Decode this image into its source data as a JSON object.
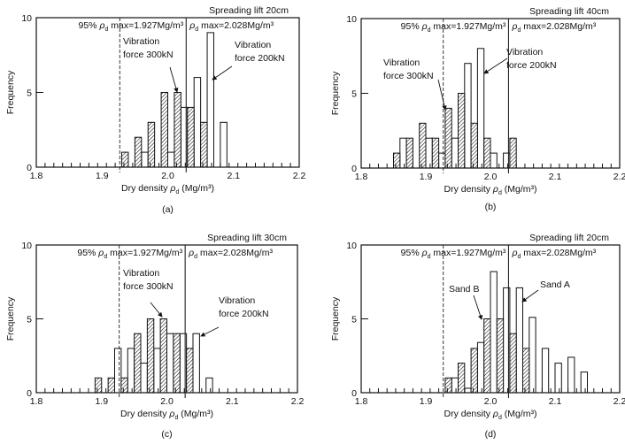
{
  "chart_data": [
    {
      "type": "bar",
      "panel_label": "(a)",
      "title": "Spreading lift 20cm",
      "ylabel": "Frequency",
      "xlabel": {
        "prefix": "Dry density ",
        "symbol": "ρ",
        "subscript": "d",
        "suffix": " (Mg/m³)"
      },
      "xlim": [
        1.8,
        2.2
      ],
      "ylim": [
        0,
        10
      ],
      "xticks": [
        "1.8",
        "1.9",
        "2.0",
        "2.1",
        "2.2"
      ],
      "yticks": [
        "0",
        "5",
        "10"
      ],
      "bin_width": 0.01,
      "ref_lines": [
        {
          "value": 1.927,
          "style": "dashed",
          "label": {
            "prefix": "95% ",
            "symbol": "ρ",
            "subscript": "d",
            "suffix": " max=1.927Mg/m³"
          }
        },
        {
          "value": 2.028,
          "style": "solid",
          "label": {
            "prefix": "",
            "symbol": "ρ",
            "subscript": "d",
            "suffix": " max=2.028Mg/m³"
          }
        }
      ],
      "series": [
        {
          "name": "Vibration force 200kN",
          "style": "open",
          "bins": [
            {
              "x": 1.96,
              "value": 1
            },
            {
              "x": 2.0,
              "value": 1
            },
            {
              "x": 2.02,
              "value": 4
            },
            {
              "x": 2.04,
              "value": 6
            },
            {
              "x": 2.06,
              "value": 9
            },
            {
              "x": 2.08,
              "value": 3
            }
          ]
        },
        {
          "name": "Vibration force 300kN",
          "style": "hatched",
          "bins": [
            {
              "x": 1.93,
              "value": 1
            },
            {
              "x": 1.95,
              "value": 2
            },
            {
              "x": 1.97,
              "value": 3
            },
            {
              "x": 1.99,
              "value": 5
            },
            {
              "x": 2.01,
              "value": 5
            },
            {
              "x": 2.03,
              "value": 4
            },
            {
              "x": 2.05,
              "value": 3
            }
          ]
        }
      ],
      "annotations": [
        {
          "lines": [
            "Vibration",
            "force 300kN"
          ]
        },
        {
          "lines": [
            "Vibration",
            "force 200kN"
          ]
        }
      ]
    },
    {
      "type": "bar",
      "panel_label": "(b)",
      "title": "Spreading lift 40cm",
      "ylabel": "Frequency",
      "xlabel": {
        "prefix": "Dry density ",
        "symbol": "ρ",
        "subscript": "d",
        "suffix": " (Mg/m³)"
      },
      "xlim": [
        1.8,
        2.2
      ],
      "ylim": [
        0,
        10
      ],
      "xticks": [
        "1.8",
        "1.9",
        "2.0",
        "2.1",
        "2.2"
      ],
      "yticks": [
        "0",
        "5",
        "10"
      ],
      "bin_width": 0.01,
      "ref_lines": [
        {
          "value": 1.927,
          "style": "dashed",
          "label": {
            "prefix": "95% ",
            "symbol": "ρ",
            "subscript": "d",
            "suffix": " max=1.927Mg/m³"
          }
        },
        {
          "value": 2.028,
          "style": "solid",
          "label": {
            "prefix": "",
            "symbol": "ρ",
            "subscript": "d",
            "suffix": " max=2.028Mg/m³"
          }
        }
      ],
      "series": [
        {
          "name": "Vibration force 200kN",
          "style": "open",
          "bins": [
            {
              "x": 1.86,
              "value": 2
            },
            {
              "x": 1.9,
              "value": 2
            },
            {
              "x": 1.92,
              "value": 1
            },
            {
              "x": 1.94,
              "value": 2
            },
            {
              "x": 1.96,
              "value": 7
            },
            {
              "x": 1.98,
              "value": 8
            },
            {
              "x": 2.0,
              "value": 1
            },
            {
              "x": 2.02,
              "value": 1
            }
          ]
        },
        {
          "name": "Vibration force 300kN",
          "style": "hatched",
          "bins": [
            {
              "x": 1.85,
              "value": 1
            },
            {
              "x": 1.87,
              "value": 2
            },
            {
              "x": 1.89,
              "value": 3
            },
            {
              "x": 1.91,
              "value": 2
            },
            {
              "x": 1.93,
              "value": 4
            },
            {
              "x": 1.95,
              "value": 5
            },
            {
              "x": 1.97,
              "value": 3
            },
            {
              "x": 1.99,
              "value": 2
            },
            {
              "x": 2.03,
              "value": 2
            }
          ]
        }
      ],
      "annotations": [
        {
          "lines": [
            "Vibration",
            "force 300kN"
          ]
        },
        {
          "lines": [
            "Vibration",
            "force 200kN"
          ]
        }
      ]
    },
    {
      "type": "bar",
      "panel_label": "(c)",
      "title": "Spreading lift 30cm",
      "ylabel": "Frequency",
      "xlabel": {
        "prefix": "Dry density ",
        "symbol": "ρ",
        "subscript": "d",
        "suffix": " (Mg/m³)"
      },
      "xlim": [
        1.8,
        2.2
      ],
      "ylim": [
        0,
        10
      ],
      "xticks": [
        "1.8",
        "1.9",
        "2.0",
        "2.1",
        "2.2"
      ],
      "yticks": [
        "0",
        "5",
        "10"
      ],
      "bin_width": 0.01,
      "ref_lines": [
        {
          "value": 1.927,
          "style": "dashed",
          "label": {
            "prefix": "95% ",
            "symbol": "ρ",
            "subscript": "d",
            "suffix": " max=1.927Mg/m³"
          }
        },
        {
          "value": 2.028,
          "style": "solid",
          "label": {
            "prefix": "",
            "symbol": "ρ",
            "subscript": "d",
            "suffix": " max=2.028Mg/m³"
          }
        }
      ],
      "series": [
        {
          "name": "Vibration force 200kN",
          "style": "open",
          "bins": [
            {
              "x": 1.92,
              "value": 3
            },
            {
              "x": 1.94,
              "value": 3
            },
            {
              "x": 1.96,
              "value": 2
            },
            {
              "x": 1.98,
              "value": 3
            },
            {
              "x": 2.0,
              "value": 4
            },
            {
              "x": 2.02,
              "value": 4
            },
            {
              "x": 2.04,
              "value": 4
            },
            {
              "x": 2.06,
              "value": 1
            }
          ]
        },
        {
          "name": "Vibration force 300kN",
          "style": "hatched",
          "bins": [
            {
              "x": 1.89,
              "value": 1
            },
            {
              "x": 1.91,
              "value": 1
            },
            {
              "x": 1.93,
              "value": 1
            },
            {
              "x": 1.95,
              "value": 4
            },
            {
              "x": 1.97,
              "value": 5
            },
            {
              "x": 1.99,
              "value": 5
            },
            {
              "x": 2.01,
              "value": 4
            },
            {
              "x": 2.03,
              "value": 3
            }
          ]
        }
      ],
      "annotations": [
        {
          "lines": [
            "Vibration",
            "force 300kN"
          ]
        },
        {
          "lines": [
            "Vibration",
            "force 200kN"
          ]
        }
      ]
    },
    {
      "type": "bar",
      "panel_label": "(d)",
      "title": "Spreading lift 20cm",
      "ylabel": "Frequency",
      "xlabel": {
        "prefix": "Dry density ",
        "symbol": "ρ",
        "subscript": "d",
        "suffix": " (Mg/m³)"
      },
      "xlim": [
        1.8,
        2.2
      ],
      "ylim": [
        0,
        10
      ],
      "xticks": [
        "1.8",
        "1.9",
        "2.0",
        "2.1",
        "2.2"
      ],
      "yticks": [
        "0",
        "5",
        "10"
      ],
      "bin_width": 0.01,
      "ref_lines": [
        {
          "value": 1.927,
          "style": "dashed",
          "label": {
            "prefix": "95% ",
            "symbol": "ρ",
            "subscript": "d",
            "suffix": " max=1.927Mg/m³"
          }
        },
        {
          "value": 2.028,
          "style": "solid",
          "label": {
            "prefix": "",
            "symbol": "ρ",
            "subscript": "d",
            "suffix": " max=2.028Mg/m³"
          }
        }
      ],
      "series": [
        {
          "name": "Sand A",
          "style": "open",
          "bins": [
            {
              "x": 1.94,
              "value": 1
            },
            {
              "x": 1.96,
              "value": 0.3
            },
            {
              "x": 1.98,
              "value": 3.4
            },
            {
              "x": 2.0,
              "value": 8.2
            },
            {
              "x": 2.02,
              "value": 7.1
            },
            {
              "x": 2.04,
              "value": 7.1
            },
            {
              "x": 2.06,
              "value": 5.1
            },
            {
              "x": 2.08,
              "value": 3
            },
            {
              "x": 2.1,
              "value": 2
            },
            {
              "x": 2.12,
              "value": 2.4
            },
            {
              "x": 2.14,
              "value": 1.4
            }
          ]
        },
        {
          "name": "Sand B",
          "style": "hatched",
          "bins": [
            {
              "x": 1.93,
              "value": 1
            },
            {
              "x": 1.95,
              "value": 2
            },
            {
              "x": 1.97,
              "value": 3
            },
            {
              "x": 1.99,
              "value": 5
            },
            {
              "x": 2.01,
              "value": 5
            },
            {
              "x": 2.03,
              "value": 4
            },
            {
              "x": 2.05,
              "value": 3
            }
          ]
        }
      ],
      "annotations": [
        {
          "lines": [
            "Sand B"
          ]
        },
        {
          "lines": [
            "Sand A"
          ]
        }
      ]
    }
  ]
}
